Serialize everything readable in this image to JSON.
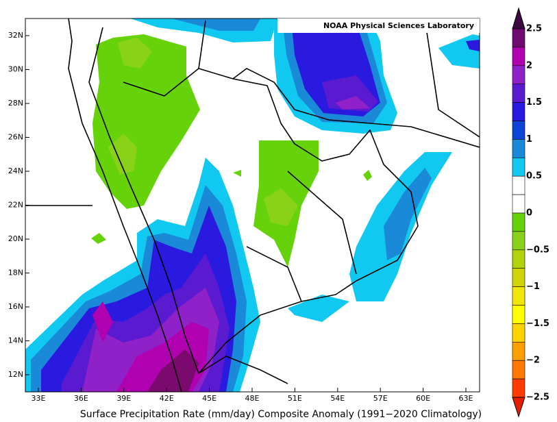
{
  "map": {
    "credit": "NOAA Physical Sciences Laboratory",
    "caption": "Surface Precipitation Rate (mm/day) Composite Anomaly (1991−2020 Climatology)",
    "lon_labels": [
      "33E",
      "36E",
      "39E",
      "42E",
      "45E",
      "48E",
      "51E",
      "54E",
      "57E",
      "60E",
      "63E"
    ],
    "lat_labels": [
      "32N",
      "30N",
      "28N",
      "26N",
      "24N",
      "22N",
      "20N",
      "18N",
      "16N",
      "14N",
      "12N"
    ],
    "colorbar_labels": [
      "2.5",
      "2",
      "1.5",
      "1",
      "0.5",
      "0",
      "−0.5",
      "−1",
      "−1.5",
      "−2",
      "−2.5"
    ]
  }
}
